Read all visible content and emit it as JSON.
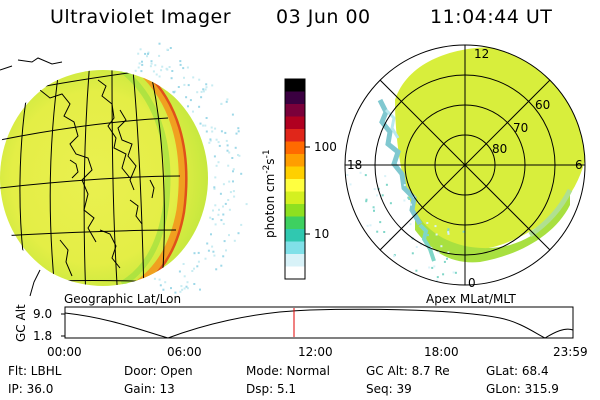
{
  "header": {
    "instrument": "Ultraviolet Imager",
    "date": "03 Jun 00",
    "time": "11:04:44 UT"
  },
  "globe_panel": {
    "caption": "Geographic Lat/Lon"
  },
  "polar_panel": {
    "caption": "Apex MLat/MLT",
    "hour_labels": {
      "top": "12",
      "left": "18",
      "right": "6",
      "bottom": "0"
    },
    "lat_labels": [
      "60",
      "70",
      "80"
    ]
  },
  "colorbar": {
    "unit_main": "photon cm",
    "unit_sup1": "-2",
    "unit_mid": "s",
    "unit_sup2": "-1",
    "ticks": [
      "100",
      "10"
    ],
    "colors": [
      "#000000",
      "#3a0040",
      "#7a003a",
      "#b00020",
      "#e0261a",
      "#ff6a00",
      "#ff9e00",
      "#ffd000",
      "#ffff40",
      "#d4f020",
      "#8ee020",
      "#3ed060",
      "#30c8b0",
      "#80e0e8",
      "#d8f2f8",
      "#ffffff"
    ]
  },
  "orbit": {
    "axis_label": "GC Alt",
    "y_ticks": [
      "9.0",
      "1.8"
    ],
    "x_ticks": [
      "00:00",
      "06:00",
      "12:00",
      "18:00",
      "23:59"
    ],
    "current_time_marker_color": "#e00000"
  },
  "footer": {
    "row1": [
      "Flt: LBHL",
      "Door: Open",
      "Mode: Normal",
      "GC Alt: 8.7 Re",
      "GLat:  68.4"
    ],
    "row2": [
      "IP: 36.0",
      "Gain: 13",
      "Dsp:    5.1",
      "Seq: 39",
      "GLon: 315.9"
    ]
  },
  "colors": {
    "glow_yellow": "#ecf24a",
    "glow_green": "#a8e23a",
    "limb_orange": "#f0a020",
    "limb_red": "#e0501a",
    "noise_cyan": "#9ed8e8"
  }
}
